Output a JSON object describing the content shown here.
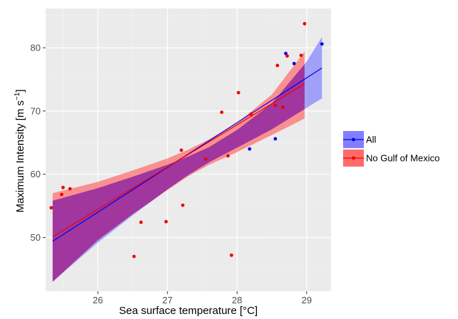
{
  "chart_data": {
    "type": "scatter",
    "xlabel": "Sea surface temperature [°C]",
    "ylabel_main": "Maximum Intensity [m s",
    "ylabel_sup": "−1",
    "ylabel_end": "]",
    "xlim": [
      25.25,
      29.35
    ],
    "ylim": [
      41.5,
      86.2
    ],
    "xticks": [
      26,
      27,
      28,
      29
    ],
    "yticks": [
      50,
      60,
      70,
      80
    ],
    "grid": true,
    "legend_position": "right",
    "colors": {
      "panel": "#ebebeb",
      "grid_major": "#ffffff",
      "grid_minor": "#f3f3f3",
      "all": "#0000ee",
      "all_band": "#8080ff",
      "no_gulf": "#ee0000",
      "no_gulf_band": "#ff6a6a",
      "overlap": "#a0369e"
    },
    "series": [
      {
        "name": "All",
        "key": "all",
        "fit": {
          "x": [
            25.35,
            29.22
          ],
          "y": [
            49.4,
            76.8
          ]
        },
        "band_upper": [
          [
            25.35,
            55.8
          ],
          [
            26.0,
            57.8
          ],
          [
            26.5,
            59.6
          ],
          [
            27.0,
            61.5
          ],
          [
            27.3,
            62.8
          ],
          [
            27.6,
            64.3
          ],
          [
            28.0,
            67.0
          ],
          [
            28.5,
            71.2
          ],
          [
            29.0,
            77.8
          ],
          [
            29.22,
            81.7
          ]
        ],
        "band_lower": [
          [
            25.35,
            43.0
          ],
          [
            26.0,
            49.2
          ],
          [
            26.5,
            53.5
          ],
          [
            27.0,
            57.6
          ],
          [
            27.3,
            59.9
          ],
          [
            27.6,
            61.9
          ],
          [
            28.0,
            64.2
          ],
          [
            28.5,
            67.1
          ],
          [
            29.0,
            70.5
          ],
          [
            29.22,
            72.0
          ]
        ],
        "points": [
          [
            28.18,
            64.0
          ],
          [
            28.55,
            65.6
          ],
          [
            28.7,
            79.1
          ],
          [
            28.82,
            77.5
          ],
          [
            29.22,
            80.6
          ]
        ]
      },
      {
        "name": "No Gulf of Mexico",
        "key": "no_gulf",
        "fit": {
          "x": [
            25.35,
            28.97
          ],
          "y": [
            50.1,
            74.3
          ]
        },
        "band_upper": [
          [
            25.35,
            57.0
          ],
          [
            26.0,
            58.8
          ],
          [
            26.5,
            60.6
          ],
          [
            27.0,
            62.5
          ],
          [
            27.3,
            63.9
          ],
          [
            27.6,
            65.5
          ],
          [
            28.0,
            68.1
          ],
          [
            28.5,
            72.6
          ],
          [
            28.97,
            79.4
          ]
        ],
        "band_lower": [
          [
            25.35,
            43.0
          ],
          [
            26.0,
            49.6
          ],
          [
            26.5,
            53.7
          ],
          [
            27.0,
            57.5
          ],
          [
            27.3,
            59.7
          ],
          [
            27.6,
            61.5
          ],
          [
            28.0,
            63.5
          ],
          [
            28.5,
            66.2
          ],
          [
            28.97,
            68.8
          ]
        ],
        "points": [
          [
            25.33,
            54.7
          ],
          [
            25.48,
            56.8
          ],
          [
            25.5,
            57.9
          ],
          [
            25.6,
            57.7
          ],
          [
            26.52,
            47.0
          ],
          [
            26.62,
            52.4
          ],
          [
            26.98,
            52.5
          ],
          [
            27.2,
            63.8
          ],
          [
            27.22,
            55.1
          ],
          [
            27.55,
            62.4
          ],
          [
            27.78,
            69.8
          ],
          [
            27.87,
            62.9
          ],
          [
            27.92,
            47.2
          ],
          [
            28.02,
            72.9
          ],
          [
            28.2,
            69.5
          ],
          [
            28.55,
            70.9
          ],
          [
            28.58,
            77.2
          ],
          [
            28.66,
            70.6
          ],
          [
            28.72,
            78.7
          ],
          [
            28.92,
            78.8
          ],
          [
            28.97,
            83.8
          ]
        ]
      }
    ]
  }
}
